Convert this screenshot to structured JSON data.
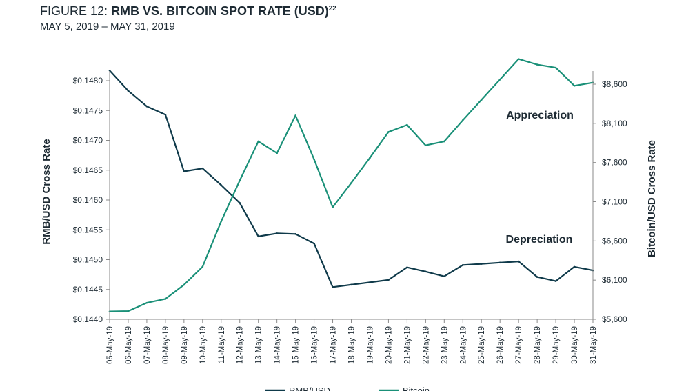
{
  "header": {
    "title_lead": "FIGURE 12: ",
    "title_main": "RMB VS. BITCOIN SPOT RATE (USD)",
    "title_sup": "22",
    "subtitle": "MAY 5, 2019 – MAY 31, 2019"
  },
  "chart_data": {
    "type": "line",
    "x": [
      "05-May-19",
      "06-May-19",
      "07-May-19",
      "08-May-19",
      "09-May-19",
      "10-May-19",
      "11-May-19",
      "12-May-19",
      "13-May-19",
      "14-May-19",
      "15-May-19",
      "16-May-19",
      "17-May-19",
      "18-May-19",
      "19-May-19",
      "20-May-19",
      "21-May-19",
      "22-May-19",
      "23-May-19",
      "24-May-19",
      "25-May-19",
      "26-May-19",
      "27-May-19",
      "28-May-19",
      "29-May-19",
      "30-May-19",
      "31-May-19"
    ],
    "series": [
      {
        "name": "RMB/USD",
        "axis": "left",
        "color": "#0f3a4a",
        "values": [
          0.14817,
          0.14783,
          0.14757,
          0.14743,
          0.14648,
          0.14653,
          0.14625,
          0.14595,
          0.14539,
          0.14544,
          0.14543,
          0.14527,
          0.14454,
          0.14458,
          0.14462,
          0.14466,
          0.14487,
          0.1448,
          0.14472,
          0.14491,
          0.14493,
          0.14495,
          0.14497,
          0.14471,
          0.14464,
          0.14488,
          0.14482
        ]
      },
      {
        "name": "Bitcoin",
        "axis": "right",
        "color": "#1a9078",
        "values": [
          5700,
          5705,
          5810,
          5860,
          6040,
          6270,
          6850,
          7370,
          7870,
          7720,
          8200,
          7640,
          7030,
          7340,
          7660,
          7990,
          8080,
          7820,
          7870,
          8140,
          8400,
          8660,
          8920,
          8850,
          8810,
          8580,
          8620
        ]
      }
    ],
    "left_axis": {
      "label": "RMB/USD Cross Rate",
      "ylim": [
        0.144,
        0.148
      ],
      "ticks": [
        "$0.1440",
        "$0.1445",
        "$0.1450",
        "$0.1455",
        "$0.1460",
        "$0.1465",
        "$0.1470",
        "$0.1475",
        "$0.1480"
      ]
    },
    "right_axis": {
      "label": "Bitcoin/USD Cross Rate",
      "ylim": [
        5600,
        8600
      ],
      "ticks": [
        "$5,600",
        "$6,100",
        "$6,600",
        "$7,100",
        "$7,600",
        "$8,100",
        "$8,600"
      ]
    },
    "annotations": [
      {
        "text": "Appreciation",
        "series": "Bitcoin"
      },
      {
        "text": "Depreciation",
        "series": "RMB/USD"
      }
    ],
    "legend_labels": [
      "RMB/USD",
      "Bitcoin"
    ],
    "legend_position": "bottom",
    "grid": false
  }
}
